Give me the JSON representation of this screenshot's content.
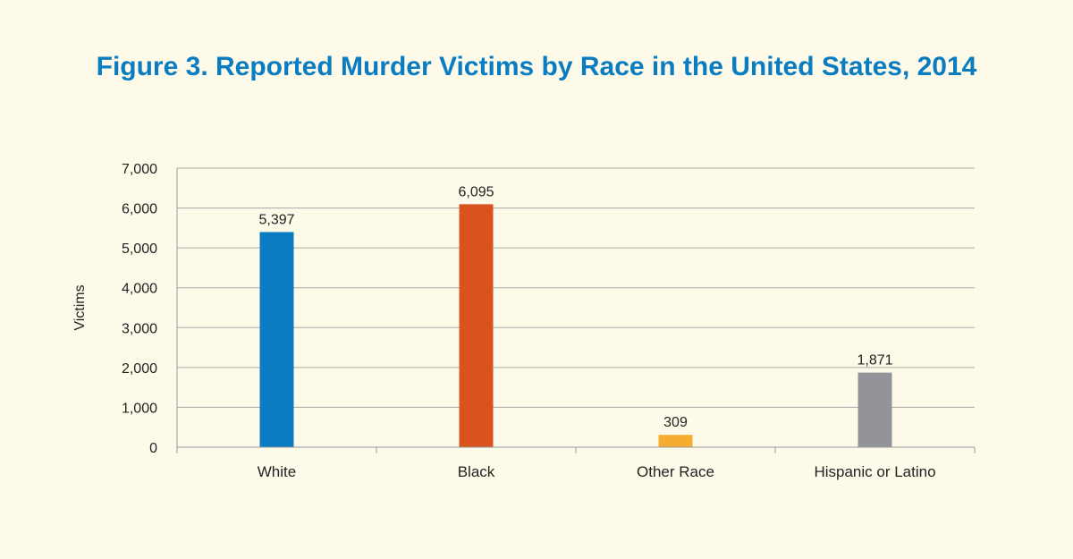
{
  "chart_data": {
    "type": "bar",
    "title": "Figure 3. Reported Murder Victims by Race in the United States, 2014",
    "ylabel": "Victims",
    "xlabel": "",
    "categories": [
      "White",
      "Black",
      "Other Race",
      "Hispanic or Latino"
    ],
    "values": [
      5397,
      6095,
      309,
      1871
    ],
    "data_labels": [
      "5,397",
      "6,095",
      "309",
      "1,871"
    ],
    "colors": [
      "#0a7cc1",
      "#d9531e",
      "#f6ac33",
      "#929497"
    ],
    "ylim": [
      0,
      7000
    ],
    "yticks": [
      0,
      1000,
      2000,
      3000,
      4000,
      5000,
      6000,
      7000
    ],
    "ytick_labels": [
      "0",
      "1,000",
      "2,000",
      "3,000",
      "4,000",
      "5,000",
      "6,000",
      "7,000"
    ],
    "grid": true,
    "legend": "none"
  }
}
